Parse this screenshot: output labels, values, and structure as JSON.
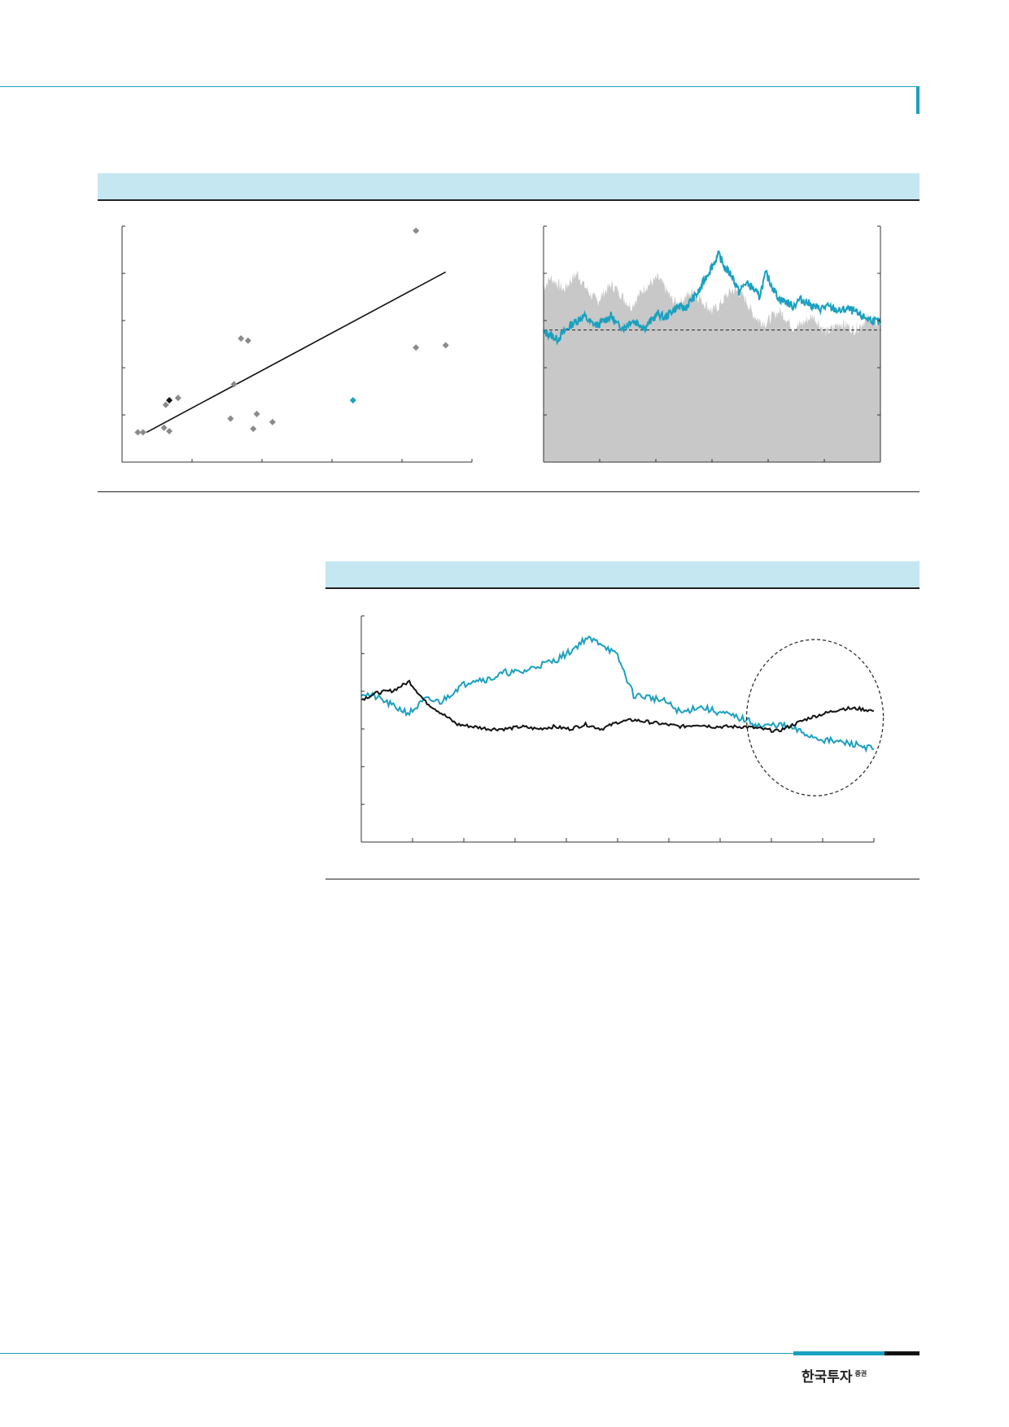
{
  "colors": {
    "accent": "#1aa0c0",
    "band": "#c4e7f1",
    "rule": "#222222",
    "scatter_point": "#8a8a8a",
    "highlight_black": "#111111",
    "highlight_cyan": "#1aa0c0",
    "area_fill": "#c8c8c8"
  },
  "footer": {
    "logo_text": "한국투자",
    "logo_suffix": "증권"
  },
  "chart_data": [
    {
      "type": "scatter",
      "points": [
        {
          "x": 0.9,
          "y": 0.8
        },
        {
          "x": 1.2,
          "y": 0.8
        },
        {
          "x": 2.4,
          "y": 1.0
        },
        {
          "x": 2.7,
          "y": 0.85
        },
        {
          "x": 2.5,
          "y": 2.0
        },
        {
          "x": 3.2,
          "y": 2.3
        },
        {
          "x": 6.2,
          "y": 1.4
        },
        {
          "x": 6.4,
          "y": 2.9
        },
        {
          "x": 6.8,
          "y": 4.9
        },
        {
          "x": 7.2,
          "y": 4.8
        },
        {
          "x": 7.7,
          "y": 1.6
        },
        {
          "x": 7.5,
          "y": 0.95
        },
        {
          "x": 8.6,
          "y": 1.25
        },
        {
          "x": 16.8,
          "y": 9.6
        },
        {
          "x": 16.8,
          "y": 4.5
        },
        {
          "x": 18.5,
          "y": 4.6
        }
      ],
      "highlight_points": [
        {
          "x": 2.7,
          "y": 2.2,
          "color": "black"
        },
        {
          "x": 13.2,
          "y": 2.2,
          "color": "cyan"
        }
      ],
      "trendline": {
        "x": [
          1.4,
          18.5
        ],
        "y": [
          0.8,
          7.8
        ]
      },
      "xlim": [
        0,
        20
      ],
      "ylim": [
        -0.5,
        9.8
      ]
    },
    {
      "type": "area",
      "x_ticks": 6,
      "y_ticks": 5,
      "reference_level": 0.56,
      "series": [
        {
          "kind": "area",
          "color": "grey",
          "values": [
            0.74,
            0.78,
            0.76,
            0.73,
            0.77,
            0.8,
            0.75,
            0.71,
            0.68,
            0.72,
            0.75,
            0.73,
            0.69,
            0.66,
            0.7,
            0.74,
            0.76,
            0.78,
            0.74,
            0.69,
            0.67,
            0.7,
            0.72,
            0.7,
            0.67,
            0.64,
            0.66,
            0.7,
            0.73,
            0.72,
            0.69,
            0.63,
            0.6,
            0.59,
            0.62,
            0.64,
            0.61,
            0.57,
            0.58,
            0.6,
            0.62,
            0.58,
            0.55,
            0.57,
            0.59,
            0.58,
            0.56,
            0.58,
            0.61,
            0.6,
            0.58
          ]
        },
        {
          "kind": "line",
          "color": "cyan",
          "values": [
            0.55,
            0.54,
            0.52,
            0.55,
            0.58,
            0.6,
            0.62,
            0.59,
            0.58,
            0.6,
            0.62,
            0.58,
            0.57,
            0.6,
            0.59,
            0.57,
            0.6,
            0.63,
            0.61,
            0.64,
            0.66,
            0.65,
            0.69,
            0.72,
            0.78,
            0.83,
            0.88,
            0.82,
            0.79,
            0.72,
            0.76,
            0.74,
            0.7,
            0.8,
            0.74,
            0.69,
            0.68,
            0.66,
            0.69,
            0.68,
            0.66,
            0.65,
            0.66,
            0.65,
            0.64,
            0.65,
            0.64,
            0.62,
            0.61,
            0.6,
            0.59
          ]
        }
      ]
    },
    {
      "type": "line",
      "x_ticks": 10,
      "y_ticks": 6,
      "series": [
        {
          "color": "cyan",
          "values": [
            0.66,
            0.64,
            0.6,
            0.57,
            0.63,
            0.62,
            0.68,
            0.72,
            0.72,
            0.75,
            0.75,
            0.78,
            0.8,
            0.84,
            0.9,
            0.88,
            0.82,
            0.65,
            0.64,
            0.62,
            0.57,
            0.6,
            0.58,
            0.56,
            0.54,
            0.51,
            0.52,
            0.5,
            0.47,
            0.45,
            0.44,
            0.43,
            0.41
          ]
        },
        {
          "color": "black",
          "values": [
            0.63,
            0.66,
            0.67,
            0.71,
            0.62,
            0.57,
            0.52,
            0.51,
            0.5,
            0.5,
            0.51,
            0.5,
            0.51,
            0.5,
            0.52,
            0.5,
            0.53,
            0.54,
            0.53,
            0.52,
            0.51,
            0.52,
            0.51,
            0.51,
            0.51,
            0.5,
            0.49,
            0.52,
            0.55,
            0.57,
            0.59,
            0.59,
            0.58
          ]
        }
      ],
      "annotation": "dashed-ellipse"
    }
  ]
}
